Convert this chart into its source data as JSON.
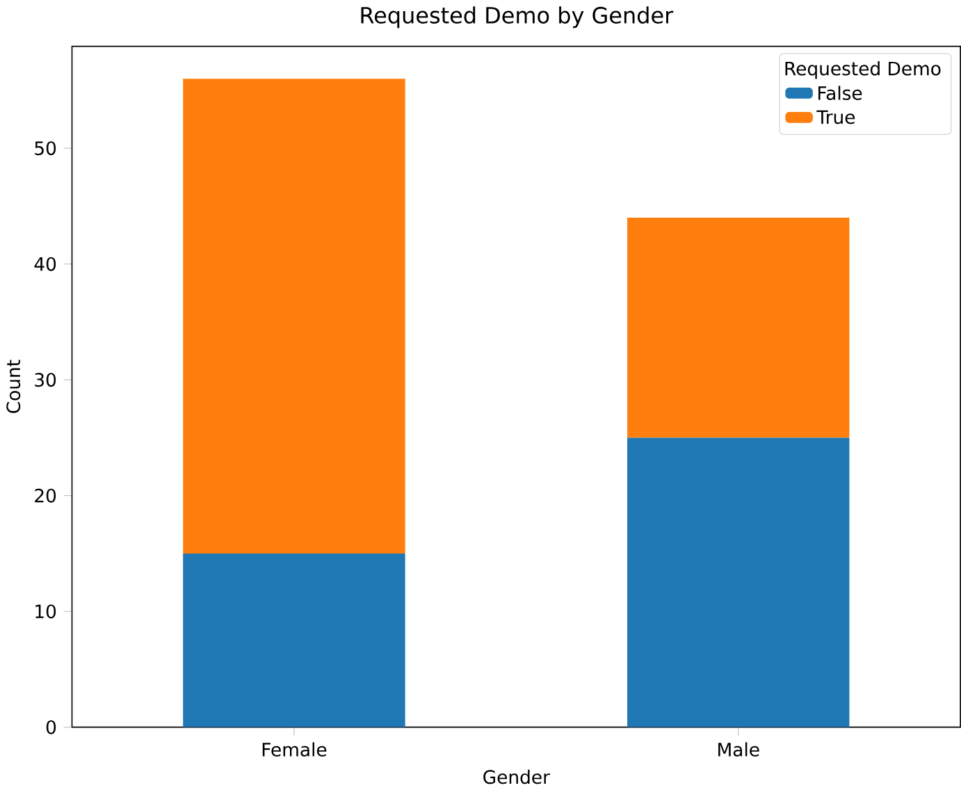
{
  "chart_data": {
    "type": "bar",
    "title": "Requested Demo by Gender",
    "xlabel": "Gender",
    "ylabel": "Count",
    "legend_title": "Requested Demo",
    "categories": [
      "Female",
      "Male"
    ],
    "stacked": true,
    "legend": "top right",
    "series": [
      {
        "name": "False",
        "color": "#1f77b4",
        "values": [
          15,
          25
        ]
      },
      {
        "name": "True",
        "color": "#ff7f0e",
        "values": [
          41,
          19
        ]
      }
    ],
    "ylim": [
      0,
      58.8
    ],
    "yticks": [
      0,
      10,
      20,
      30,
      40,
      50
    ]
  }
}
